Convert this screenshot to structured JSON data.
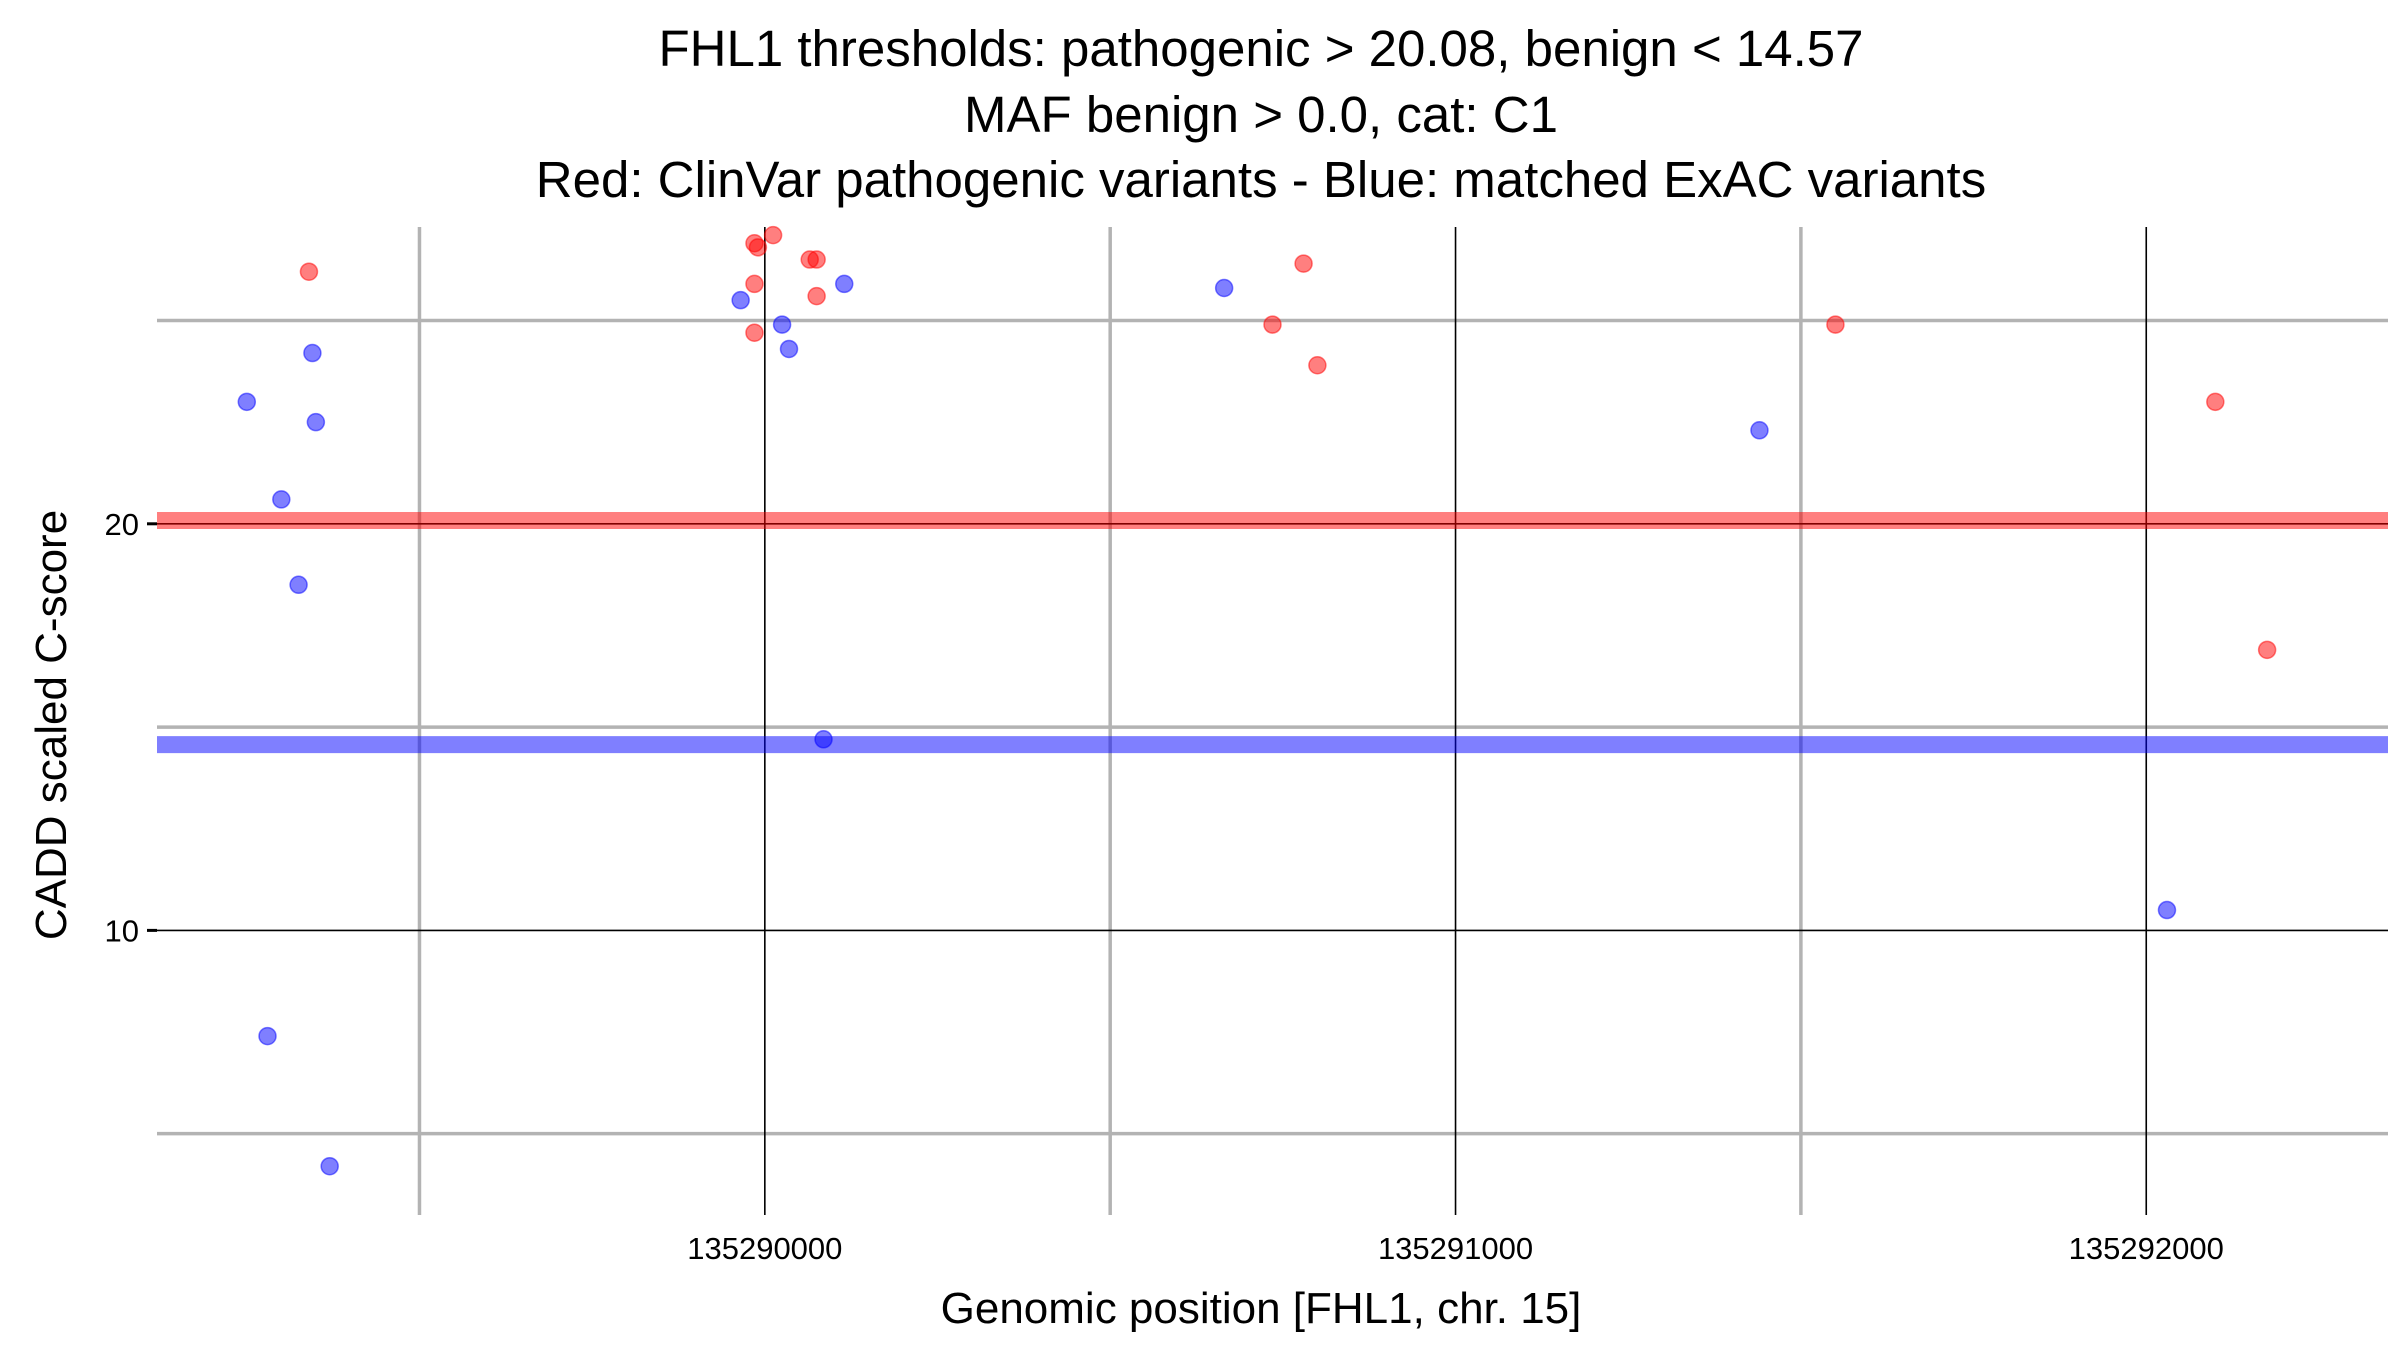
{
  "chart_data": {
    "type": "scatter",
    "title_lines": [
      "FHL1 thresholds: pathogenic > 20.08, benign < 14.57",
      "MAF benign > 0.0, cat: C1",
      "Red: ClinVar pathogenic variants - Blue: matched ExAC variants"
    ],
    "xlabel": "Genomic position [FHL1, chr. 15]",
    "ylabel": "CADD scaled C-score",
    "xlim": [
      135289120,
      135292350
    ],
    "ylim": [
      3.0,
      27.3
    ],
    "x_major_ticks": [
      135290000,
      135291000,
      135292000
    ],
    "x_tick_labels": [
      "135290000",
      "135291000",
      "135292000"
    ],
    "x_minor_gridlines": [
      135289500,
      135290500,
      135291500
    ],
    "y_major_ticks": [
      10,
      20
    ],
    "y_tick_labels": [
      "10",
      "20"
    ],
    "y_minor_gridlines": [
      5,
      15,
      25
    ],
    "grid": true,
    "thresholds": [
      {
        "name": "pathogenic",
        "value": 20.08,
        "color": "#ff0000"
      },
      {
        "name": "benign",
        "value": 14.57,
        "color": "#0000ff"
      }
    ],
    "series": [
      {
        "color": "#ff0000",
        "points": [
          {
            "x": 135289340,
            "y": 26.2
          },
          {
            "x": 135289985,
            "y": 26.9
          },
          {
            "x": 135289990,
            "y": 26.8
          },
          {
            "x": 135290012,
            "y": 27.1
          },
          {
            "x": 135289985,
            "y": 25.9
          },
          {
            "x": 135290065,
            "y": 26.5
          },
          {
            "x": 135290075,
            "y": 26.5
          },
          {
            "x": 135290075,
            "y": 25.6
          },
          {
            "x": 135289985,
            "y": 24.7
          },
          {
            "x": 135290780,
            "y": 26.4
          },
          {
            "x": 135290735,
            "y": 24.9
          },
          {
            "x": 135290800,
            "y": 23.9
          },
          {
            "x": 135291550,
            "y": 24.9
          },
          {
            "x": 135292100,
            "y": 23.0
          },
          {
            "x": 135292175,
            "y": 16.9
          }
        ]
      },
      {
        "color": "#0000ff",
        "points": [
          {
            "x": 135289250,
            "y": 23.0
          },
          {
            "x": 135289345,
            "y": 24.2
          },
          {
            "x": 135289350,
            "y": 22.5
          },
          {
            "x": 135289300,
            "y": 20.6
          },
          {
            "x": 135289325,
            "y": 18.5
          },
          {
            "x": 135289280,
            "y": 7.4
          },
          {
            "x": 135289370,
            "y": 4.2
          },
          {
            "x": 135289965,
            "y": 25.5
          },
          {
            "x": 135290025,
            "y": 24.9
          },
          {
            "x": 135290035,
            "y": 24.3
          },
          {
            "x": 135290115,
            "y": 25.9
          },
          {
            "x": 135290085,
            "y": 14.7
          },
          {
            "x": 135290665,
            "y": 25.8
          },
          {
            "x": 135291440,
            "y": 22.3
          },
          {
            "x": 135292030,
            "y": 10.5
          }
        ]
      }
    ]
  }
}
